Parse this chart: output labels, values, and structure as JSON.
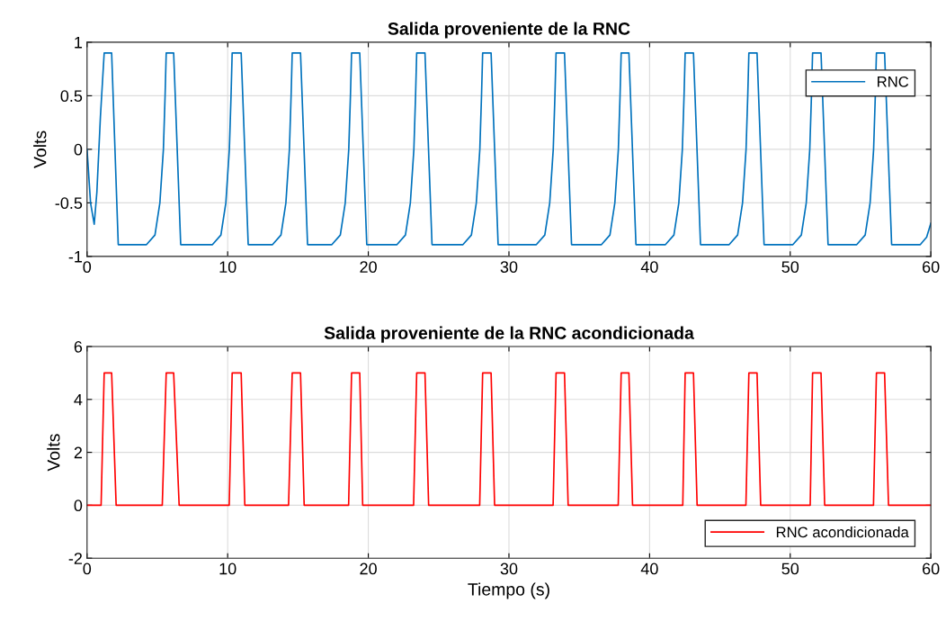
{
  "chart_data": [
    {
      "type": "line",
      "title": "Salida proveniente de la RNC",
      "ylabel": "Volts",
      "xlim": [
        0,
        60
      ],
      "xticks": [
        0,
        10,
        20,
        30,
        40,
        50,
        60
      ],
      "ylim": [
        -1,
        1
      ],
      "yticks": [
        -1,
        -0.5,
        0,
        0.5,
        1
      ],
      "grid": true,
      "legend": "top right",
      "series": [
        {
          "name": "RNC",
          "color": "#0072bd",
          "x": [
            0,
            0.25,
            0.51,
            0.7,
            0.95,
            1.22,
            1.75,
            2.22,
            4.23,
            4.83,
            5.18,
            5.43,
            5.55,
            5.63,
            6.16,
            6.66,
            8.92,
            9.52,
            9.87,
            10.12,
            10.24,
            10.32,
            10.96,
            11.46,
            13.19,
            13.79,
            14.14,
            14.39,
            14.51,
            14.59,
            15.18,
            15.68,
            17.41,
            18.01,
            18.36,
            18.61,
            18.73,
            18.81,
            19.39,
            19.89,
            22.04,
            22.64,
            22.99,
            23.24,
            23.36,
            23.44,
            24.03,
            24.53,
            26.73,
            27.33,
            27.68,
            27.93,
            28.05,
            28.13,
            28.73,
            29.23,
            31.95,
            32.55,
            32.9,
            33.15,
            33.27,
            33.35,
            33.95,
            34.45,
            36.58,
            37.18,
            37.53,
            37.78,
            37.9,
            37.98,
            38.53,
            39.03,
            41.13,
            41.73,
            42.08,
            42.33,
            42.45,
            42.53,
            43.12,
            43.62,
            45.66,
            46.26,
            46.61,
            46.86,
            46.98,
            47.06,
            47.64,
            48.14,
            50.19,
            50.79,
            51.14,
            51.39,
            51.51,
            51.59,
            52.19,
            52.69,
            54.73,
            55.33,
            55.68,
            55.93,
            56.05,
            56.13,
            56.71,
            57.21,
            59.25,
            59.7,
            60
          ],
          "values": [
            0,
            -0.5,
            -0.7,
            -0.4,
            0.3,
            0.9,
            0.9,
            -0.89,
            -0.89,
            -0.8,
            -0.5,
            0,
            0.5,
            0.9,
            0.9,
            -0.89,
            -0.89,
            -0.8,
            -0.5,
            0,
            0.5,
            0.9,
            0.9,
            -0.89,
            -0.89,
            -0.8,
            -0.5,
            0,
            0.5,
            0.9,
            0.9,
            -0.89,
            -0.89,
            -0.8,
            -0.5,
            0,
            0.5,
            0.9,
            0.9,
            -0.89,
            -0.89,
            -0.8,
            -0.5,
            0,
            0.5,
            0.9,
            0.9,
            -0.89,
            -0.89,
            -0.8,
            -0.5,
            0,
            0.5,
            0.9,
            0.9,
            -0.89,
            -0.89,
            -0.8,
            -0.5,
            0,
            0.5,
            0.9,
            0.9,
            -0.89,
            -0.89,
            -0.8,
            -0.5,
            0,
            0.5,
            0.9,
            0.9,
            -0.89,
            -0.89,
            -0.8,
            -0.5,
            0,
            0.5,
            0.9,
            0.9,
            -0.89,
            -0.89,
            -0.8,
            -0.5,
            0,
            0.5,
            0.9,
            0.9,
            -0.89,
            -0.89,
            -0.8,
            -0.5,
            0,
            0.5,
            0.9,
            0.9,
            -0.89,
            -0.89,
            -0.8,
            -0.5,
            0,
            0.5,
            0.9,
            0.9,
            -0.89,
            -0.89,
            -0.82,
            -0.69
          ]
        }
      ]
    },
    {
      "type": "line",
      "title": "Salida proveniente de la RNC acondicionada",
      "xlabel": "Tiempo (s)",
      "ylabel": "Volts",
      "xlim": [
        0,
        60
      ],
      "xticks": [
        0,
        10,
        20,
        30,
        40,
        50,
        60
      ],
      "ylim": [
        -2,
        6
      ],
      "yticks": [
        -2,
        0,
        2,
        4,
        6
      ],
      "grid": true,
      "legend": "bottom right",
      "series": [
        {
          "name": "RNC acondicionada",
          "color": "#ff0000",
          "x": [
            0,
            1.0,
            1.22,
            1.75,
            2.07,
            5.35,
            5.63,
            6.16,
            6.55,
            10.11,
            10.32,
            10.96,
            11.22,
            14.33,
            14.59,
            15.18,
            15.44,
            18.6,
            18.81,
            19.39,
            19.6,
            23.22,
            23.44,
            24.03,
            24.29,
            27.92,
            28.13,
            28.73,
            28.98,
            33.14,
            33.35,
            33.95,
            34.21,
            37.77,
            37.98,
            38.53,
            38.79,
            42.36,
            42.53,
            43.12,
            43.38,
            46.85,
            47.06,
            47.64,
            47.9,
            51.42,
            51.59,
            52.19,
            52.45,
            55.92,
            56.13,
            56.71,
            56.99,
            60
          ],
          "values": [
            0,
            0,
            5,
            5,
            0,
            0,
            5,
            5,
            0,
            0,
            5,
            5,
            0,
            0,
            5,
            5,
            0,
            0,
            5,
            5,
            0,
            0,
            5,
            5,
            0,
            0,
            5,
            5,
            0,
            0,
            5,
            5,
            0,
            0,
            5,
            5,
            0,
            0,
            5,
            5,
            0,
            0,
            5,
            5,
            0,
            0,
            5,
            5,
            0,
            0,
            5,
            5,
            0,
            0
          ]
        }
      ]
    }
  ]
}
